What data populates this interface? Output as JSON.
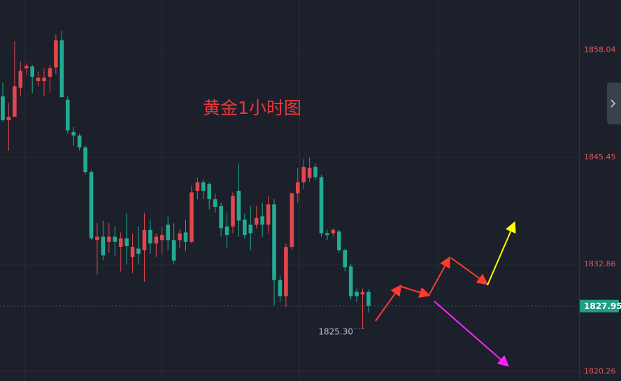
{
  "chart_data": {
    "type": "candlestick",
    "title": "黄金1小时图",
    "open": [
      1852.6,
      1849.8,
      1850.2,
      1853.6,
      1855.9,
      1856.1,
      1854.4,
      1854.4,
      1854.9,
      1856.0,
      1859.2,
      1852.2,
      1848.4,
      1848.0,
      1846.6,
      1843.7,
      1835.7,
      1836.1,
      1835.5,
      1836.1,
      1834.9,
      1835.9,
      1833.7,
      1834.7,
      1834.5,
      1836.9,
      1835.3,
      1835.7,
      1837.5,
      1835.7,
      1835.7,
      1836.6,
      1835.5,
      1841.5,
      1842.5,
      1842.3,
      1840.5,
      1839.7,
      1837.3,
      1837.3,
      1841.5,
      1838.1,
      1837.5,
      1837.5,
      1838.5,
      1837.5,
      1839.9,
      1831.0,
      1829.1,
      1834.9,
      1841.2,
      1842.5,
      1843.0,
      1844.3,
      1843.1,
      1836.5,
      1836.5,
      1836.7,
      1834.5,
      1832.6,
      1829.6,
      1829.3,
      1829.6
    ],
    "high": [
      1854.2,
      1851.8,
      1859.1,
      1856.7,
      1856.5,
      1856.3,
      1855.5,
      1855.9,
      1856.3,
      1859.9,
      1860.3,
      1852.6,
      1849.0,
      1848.2,
      1846.8,
      1843.9,
      1837.7,
      1838.0,
      1837.7,
      1837.3,
      1836.6,
      1838.9,
      1836.5,
      1837.3,
      1838.9,
      1838.1,
      1836.5,
      1837.3,
      1838.5,
      1837.7,
      1837.0,
      1838.1,
      1842.1,
      1843.0,
      1842.8,
      1842.5,
      1841.2,
      1840.1,
      1838.9,
      1841.3,
      1844.7,
      1838.8,
      1839.7,
      1839.7,
      1840.1,
      1840.9,
      1840.5,
      1831.6,
      1835.3,
      1841.3,
      1844.2,
      1845.2,
      1845.4,
      1844.7,
      1843.4,
      1836.9,
      1837.1,
      1836.9,
      1834.7,
      1832.9,
      1830.0,
      1830.0,
      1829.9
    ],
    "low": [
      1849.6,
      1846.2,
      1850.2,
      1852.6,
      1855.1,
      1853.0,
      1853.8,
      1852.6,
      1853.0,
      1855.2,
      1852.5,
      1848.2,
      1846.8,
      1846.2,
      1843.4,
      1835.7,
      1831.6,
      1833.3,
      1834.2,
      1833.9,
      1832.0,
      1832.9,
      1831.8,
      1832.9,
      1830.8,
      1834.1,
      1833.7,
      1834.1,
      1834.5,
      1832.9,
      1834.7,
      1834.4,
      1835.3,
      1840.5,
      1840.5,
      1839.3,
      1838.9,
      1836.1,
      1834.7,
      1836.5,
      1836.1,
      1835.9,
      1834.5,
      1837.1,
      1836.1,
      1836.5,
      1828.0,
      1828.4,
      1827.8,
      1834.5,
      1840.1,
      1841.7,
      1842.5,
      1842.8,
      1836.1,
      1835.7,
      1836.1,
      1834.2,
      1832.0,
      1828.7,
      1828.4,
      1825.3,
      1827.2
    ],
    "close": [
      1849.8,
      1850.2,
      1853.8,
      1855.6,
      1856.2,
      1854.9,
      1854.8,
      1854.8,
      1855.9,
      1859.2,
      1852.5,
      1848.6,
      1848.0,
      1846.6,
      1843.7,
      1835.9,
      1836.1,
      1833.9,
      1836.1,
      1835.5,
      1835.9,
      1835.0,
      1834.9,
      1834.1,
      1836.9,
      1835.3,
      1836.1,
      1836.3,
      1835.7,
      1833.3,
      1836.5,
      1835.5,
      1841.3,
      1842.5,
      1841.5,
      1840.5,
      1839.6,
      1837.1,
      1836.3,
      1840.9,
      1838.0,
      1836.3,
      1836.5,
      1838.3,
      1837.5,
      1839.9,
      1831.0,
      1829.1,
      1834.9,
      1841.2,
      1842.5,
      1844.3,
      1844.2,
      1843.1,
      1836.5,
      1836.3,
      1836.9,
      1834.5,
      1832.5,
      1829.1,
      1829.1,
      1829.6,
      1827.95
    ],
    "up_color": "#e0474c",
    "down_color": "#22ab94",
    "ylim": [
      1819.13,
      1863.93
    ],
    "yticks": [
      1858.04,
      1845.45,
      1832.86,
      1820.26
    ],
    "grid": true,
    "last_price": 1827.95,
    "low_label": {
      "value": 1825.3,
      "label": "1825.30"
    }
  }
}
